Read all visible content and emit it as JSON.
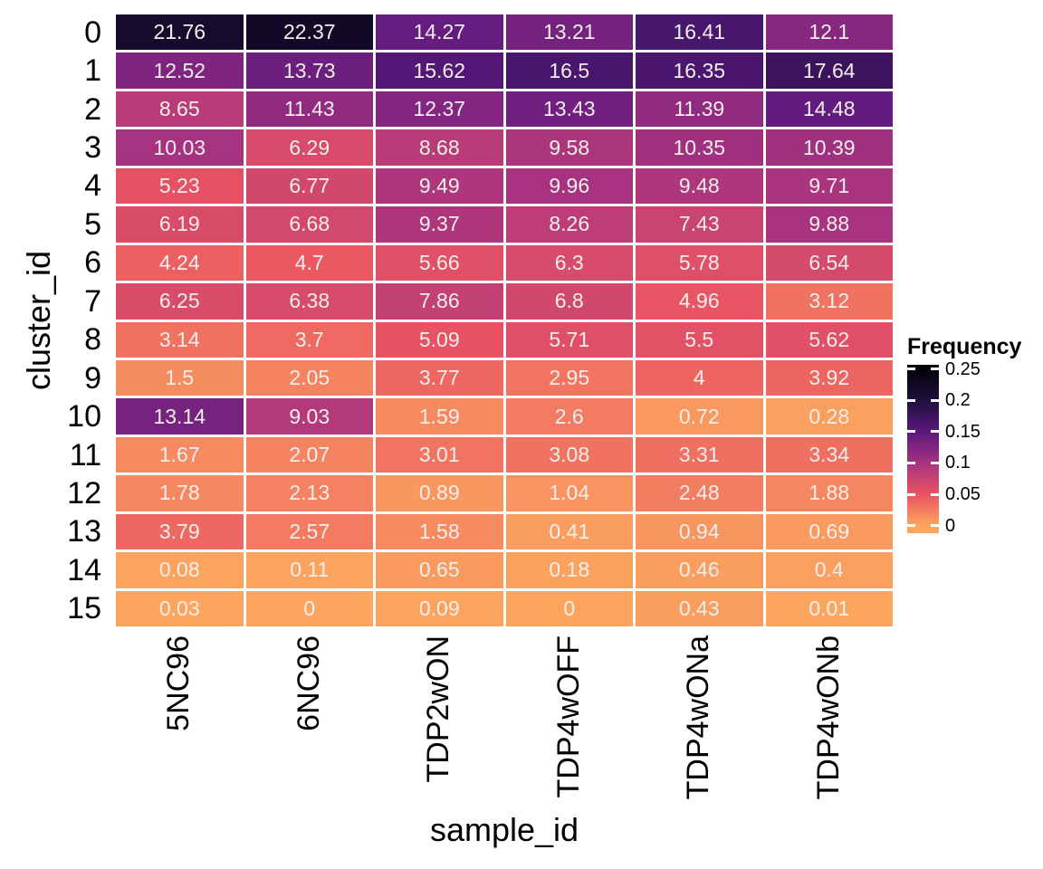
{
  "chart_data": {
    "type": "heatmap",
    "xlabel": "sample_id",
    "ylabel": "cluster_id",
    "x_categories": [
      "5NC96",
      "6NC96",
      "TDP2wON",
      "TDP4wOFF",
      "TDP4wONa",
      "TDP4wONb"
    ],
    "y_categories": [
      "0",
      "1",
      "2",
      "3",
      "4",
      "5",
      "6",
      "7",
      "8",
      "9",
      "10",
      "11",
      "12",
      "13",
      "14",
      "15"
    ],
    "values": [
      [
        "21.76",
        "22.37",
        "14.27",
        "13.21",
        "16.41",
        "12.1"
      ],
      [
        "12.52",
        "13.73",
        "15.62",
        "16.5",
        "16.35",
        "17.64"
      ],
      [
        "8.65",
        "11.43",
        "12.37",
        "13.43",
        "11.39",
        "14.48"
      ],
      [
        "10.03",
        "6.29",
        "8.68",
        "9.58",
        "10.35",
        "10.39"
      ],
      [
        "5.23",
        "6.77",
        "9.49",
        "9.96",
        "9.48",
        "9.71"
      ],
      [
        "6.19",
        "6.68",
        "9.37",
        "8.26",
        "7.43",
        "9.88"
      ],
      [
        "4.24",
        "4.7",
        "5.66",
        "6.3",
        "5.78",
        "6.54"
      ],
      [
        "6.25",
        "6.38",
        "7.86",
        "6.8",
        "4.96",
        "3.12"
      ],
      [
        "3.14",
        "3.7",
        "5.09",
        "5.71",
        "5.5",
        "5.62"
      ],
      [
        "1.5",
        "2.05",
        "3.77",
        "2.95",
        "4",
        "3.92"
      ],
      [
        "13.14",
        "9.03",
        "1.59",
        "2.6",
        "0.72",
        "0.28"
      ],
      [
        "1.67",
        "2.07",
        "3.01",
        "3.08",
        "3.31",
        "3.34"
      ],
      [
        "1.78",
        "2.13",
        "0.89",
        "1.04",
        "2.48",
        "1.88"
      ],
      [
        "3.79",
        "2.57",
        "1.58",
        "0.41",
        "0.94",
        "0.69"
      ],
      [
        "0.08",
        "0.11",
        "0.65",
        "0.18",
        "0.46",
        "0.4"
      ],
      [
        "0.03",
        "0",
        "0.09",
        "0",
        "0.43",
        "0.01"
      ]
    ],
    "legend": {
      "title": "Frequency",
      "position": "right",
      "tick_labels": [
        "0.25",
        "0.2",
        "0.15",
        "0.1",
        "0.05",
        "0"
      ],
      "tick_values": [
        0.25,
        0.2,
        0.15,
        0.1,
        0.05,
        0
      ]
    },
    "fill_range": [
      0,
      0.25
    ],
    "colors": {
      "scale_stops": [
        {
          "v": 0.0,
          "c": "#fca55f"
        },
        {
          "v": 0.05,
          "c": "#e95462"
        },
        {
          "v": 0.1,
          "c": "#a63380"
        },
        {
          "v": 0.15,
          "c": "#5a187f"
        },
        {
          "v": 0.2,
          "c": "#1f103f"
        },
        {
          "v": 0.25,
          "c": "#03020a"
        }
      ],
      "cell_text": "#f2eeec",
      "grid_lines": "#ffffff",
      "axis_text": "#000000",
      "background": "#ffffff"
    },
    "grid": false
  }
}
